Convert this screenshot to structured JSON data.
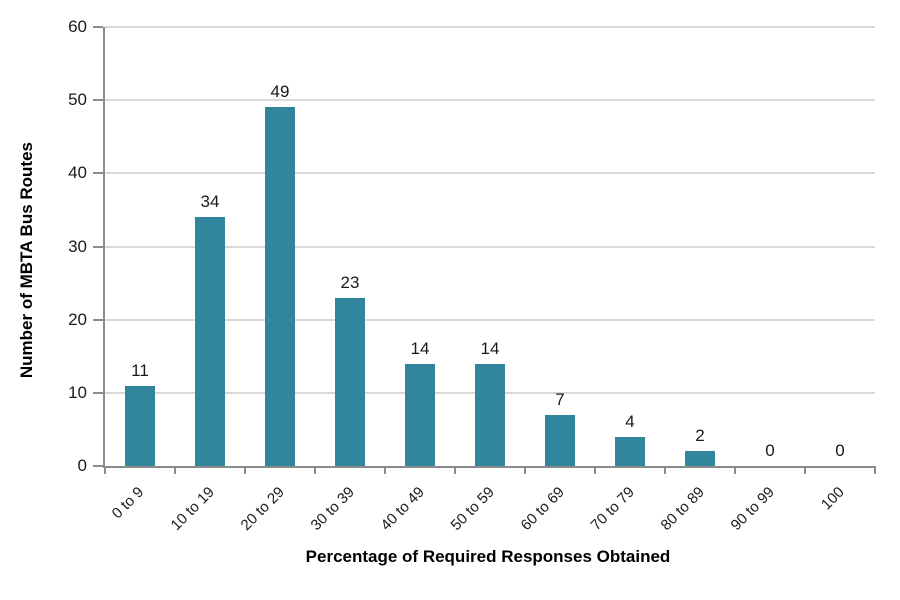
{
  "chart_data": {
    "type": "bar",
    "title": "",
    "categories": [
      "0 to 9",
      "10 to 19",
      "20 to 29",
      "30 to 39",
      "40 to 49",
      "50 to 59",
      "60 to 69",
      "70 to 79",
      "80 to 89",
      "90 to 99",
      "100"
    ],
    "values": [
      11,
      34,
      49,
      23,
      14,
      14,
      7,
      4,
      2,
      0,
      0
    ],
    "xlabel": "Percentage of Required Responses Obtained",
    "ylabel": "Number of MBTA Bus Routes",
    "ylim": [
      0,
      60
    ],
    "yticks": [
      0,
      10,
      20,
      30,
      40,
      50,
      60
    ],
    "grid": true,
    "legend": false,
    "data_labels": true,
    "colors": {
      "bar": "#31859c",
      "gridline": "#d9d9d9",
      "axis": "#8c8c8c",
      "text": "#1a1a1a"
    }
  }
}
